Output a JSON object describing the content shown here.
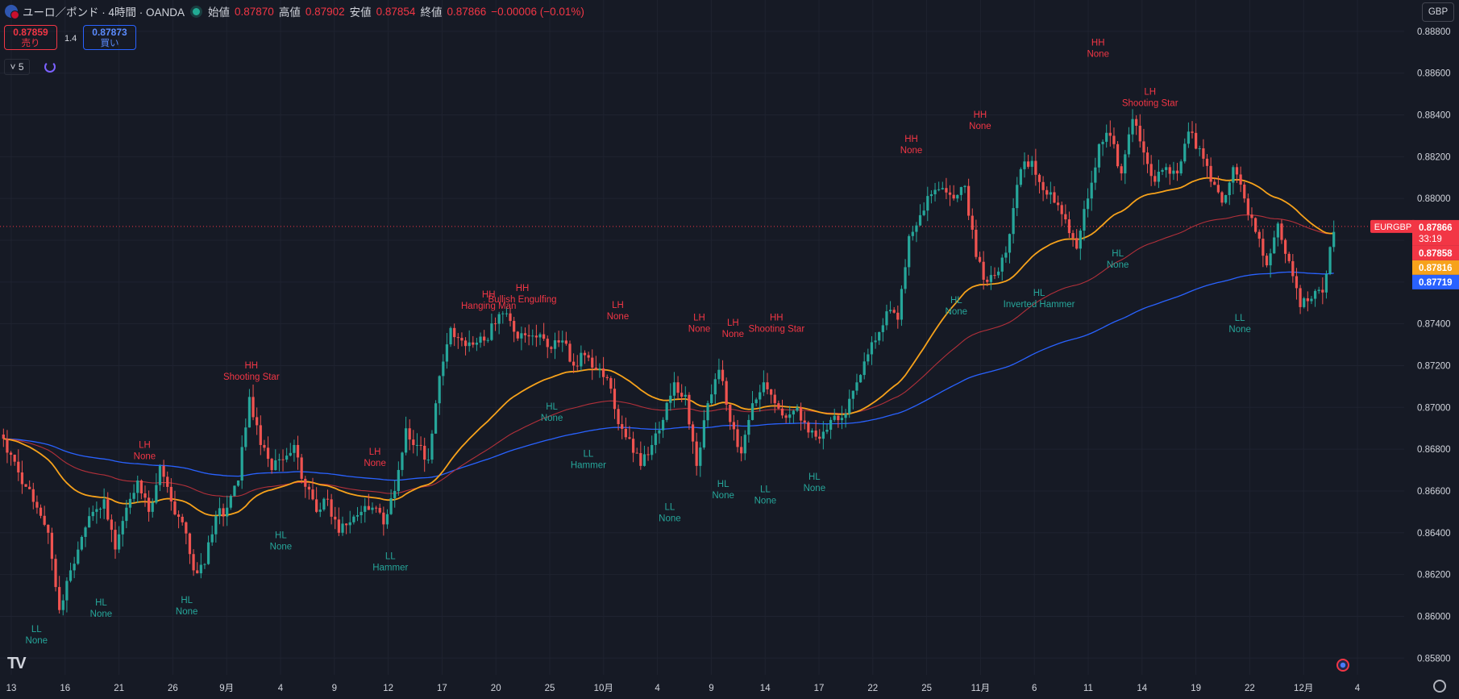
{
  "header": {
    "symbol_title": "ユーロ／ポンド · 4時間 · OANDA",
    "open_label": "始値",
    "open": "0.87870",
    "high_label": "高値",
    "high": "0.87902",
    "low_label": "安値",
    "low": "0.87854",
    "close_label": "終値",
    "close": "0.87866",
    "change": "−0.00006 (−0.01%)"
  },
  "trade": {
    "sell_price": "0.87859",
    "sell_label": "売り",
    "spread": "1.4",
    "buy_price": "0.87873",
    "buy_label": "買い"
  },
  "indicator_count": "5",
  "currency": "GBP",
  "colors": {
    "background": "#161a25",
    "grid": "#1f2330",
    "up": "#26a69a",
    "down": "#ef5350",
    "ema_orange": "#f7a21b",
    "ma_red": "#b2303a",
    "ma_blue": "#2962ff",
    "label_high": "#f23645",
    "label_low": "#26a69a"
  },
  "chart_data": {
    "type": "candlestick",
    "y_ticks": [
      "0.88800",
      "0.88600",
      "0.88400",
      "0.88200",
      "0.88000",
      "0.87800",
      "0.87600",
      "0.87400",
      "0.87200",
      "0.87000",
      "0.86800",
      "0.86600",
      "0.86400",
      "0.86200",
      "0.86000",
      "0.85800"
    ],
    "ylim": [
      0.8572,
      0.8895
    ],
    "x_ticks": [
      "13",
      "16",
      "21",
      "26",
      "9月",
      "4",
      "9",
      "12",
      "17",
      "20",
      "25",
      "10月",
      "4",
      "9",
      "14",
      "17",
      "22",
      "25",
      "11月",
      "6",
      "11",
      "14",
      "19",
      "22",
      "12月",
      "4"
    ],
    "price_labels": {
      "symbol": "EURGBP",
      "last": "0.87866",
      "countdown": "33:19",
      "ma_red": "0.87858",
      "ema_orange": "0.87816",
      "ma_blue": "0.87719"
    },
    "anchors": [
      0.8685,
      0.8674,
      0.8662,
      0.8652,
      0.864,
      0.8603,
      0.8622,
      0.8638,
      0.865,
      0.8656,
      0.8632,
      0.8652,
      0.8665,
      0.865,
      0.8672,
      0.8655,
      0.8645,
      0.8622,
      0.8625,
      0.8648,
      0.8652,
      0.8665,
      0.8705,
      0.8682,
      0.867,
      0.8675,
      0.8682,
      0.8662,
      0.865,
      0.8656,
      0.864,
      0.8645,
      0.865,
      0.8652,
      0.8644,
      0.866,
      0.869,
      0.8682,
      0.8675,
      0.8715,
      0.8738,
      0.8732,
      0.873,
      0.8732,
      0.874,
      0.8745,
      0.8733,
      0.8734,
      0.8735,
      0.8728,
      0.8732,
      0.872,
      0.8725,
      0.8718,
      0.8714,
      0.8692,
      0.8685,
      0.8672,
      0.8682,
      0.8694,
      0.8712,
      0.8706,
      0.8672,
      0.8702,
      0.8718,
      0.8693,
      0.8678,
      0.8702,
      0.8712,
      0.8702,
      0.8695,
      0.87,
      0.8688,
      0.8685,
      0.8694,
      0.8695,
      0.8708,
      0.8722,
      0.8732,
      0.8746,
      0.8742,
      0.8782,
      0.8792,
      0.8802,
      0.8805,
      0.88,
      0.8806,
      0.8772,
      0.876,
      0.8765,
      0.8783,
      0.8814,
      0.8818,
      0.8804,
      0.8798,
      0.879,
      0.8776,
      0.88,
      0.8826,
      0.883,
      0.8812,
      0.8838,
      0.8822,
      0.8808,
      0.8815,
      0.8812,
      0.8832,
      0.8824,
      0.8808,
      0.8798,
      0.8815,
      0.88,
      0.8784,
      0.8768,
      0.8788,
      0.877,
      0.8748,
      0.8752,
      0.8755,
      0.8784
    ],
    "annotations": [
      {
        "type": "high",
        "x": 0.103,
        "y": 0.86745,
        "swing": "LH",
        "pattern": "None"
      },
      {
        "type": "high",
        "x": 0.179,
        "y": 0.87125,
        "swing": "HH",
        "pattern": "Shooting Star"
      },
      {
        "type": "high",
        "x": 0.267,
        "y": 0.86712,
        "swing": "LH",
        "pattern": "None"
      },
      {
        "type": "high",
        "x": 0.348,
        "y": 0.87465,
        "swing": "HH",
        "pattern": "Hanging Man"
      },
      {
        "type": "high",
        "x": 0.372,
        "y": 0.87495,
        "swing": "HH",
        "pattern": "Bullish Engulfing"
      },
      {
        "type": "high",
        "x": 0.44,
        "y": 0.87415,
        "swing": "LH",
        "pattern": "None"
      },
      {
        "type": "high",
        "x": 0.498,
        "y": 0.87355,
        "swing": "LH",
        "pattern": "None"
      },
      {
        "type": "high",
        "x": 0.522,
        "y": 0.8733,
        "swing": "LH",
        "pattern": "None"
      },
      {
        "type": "high",
        "x": 0.553,
        "y": 0.87355,
        "swing": "HH",
        "pattern": "Shooting Star"
      },
      {
        "type": "high",
        "x": 0.649,
        "y": 0.8821,
        "swing": "HH",
        "pattern": "None"
      },
      {
        "type": "high",
        "x": 0.698,
        "y": 0.88325,
        "swing": "HH",
        "pattern": "None"
      },
      {
        "type": "high",
        "x": 0.782,
        "y": 0.8867,
        "swing": "HH",
        "pattern": "None"
      },
      {
        "type": "high",
        "x": 0.819,
        "y": 0.88435,
        "swing": "LH",
        "pattern": "Shooting Star"
      },
      {
        "type": "low",
        "x": 0.026,
        "y": 0.8597,
        "swing": "LL",
        "pattern": "None"
      },
      {
        "type": "low",
        "x": 0.072,
        "y": 0.86098,
        "swing": "HL",
        "pattern": "None"
      },
      {
        "type": "low",
        "x": 0.133,
        "y": 0.8611,
        "swing": "HL",
        "pattern": "None"
      },
      {
        "type": "low",
        "x": 0.2,
        "y": 0.8642,
        "swing": "HL",
        "pattern": "None"
      },
      {
        "type": "low",
        "x": 0.278,
        "y": 0.8632,
        "swing": "LL",
        "pattern": "Hammer"
      },
      {
        "type": "low",
        "x": 0.393,
        "y": 0.87035,
        "swing": "HL",
        "pattern": "None"
      },
      {
        "type": "low",
        "x": 0.419,
        "y": 0.8681,
        "swing": "LL",
        "pattern": "Hammer"
      },
      {
        "type": "low",
        "x": 0.477,
        "y": 0.86555,
        "swing": "LL",
        "pattern": "None"
      },
      {
        "type": "low",
        "x": 0.515,
        "y": 0.86665,
        "swing": "HL",
        "pattern": "None"
      },
      {
        "type": "low",
        "x": 0.545,
        "y": 0.8664,
        "swing": "LL",
        "pattern": "None"
      },
      {
        "type": "low",
        "x": 0.58,
        "y": 0.867,
        "swing": "HL",
        "pattern": "None"
      },
      {
        "type": "low",
        "x": 0.681,
        "y": 0.87545,
        "swing": "HL",
        "pattern": "None"
      },
      {
        "type": "low",
        "x": 0.74,
        "y": 0.8758,
        "swing": "HL",
        "pattern": "Inverted Hammer"
      },
      {
        "type": "low",
        "x": 0.796,
        "y": 0.8777,
        "swing": "HL",
        "pattern": "None"
      },
      {
        "type": "low",
        "x": 0.883,
        "y": 0.8746,
        "swing": "LL",
        "pattern": "None"
      }
    ]
  }
}
